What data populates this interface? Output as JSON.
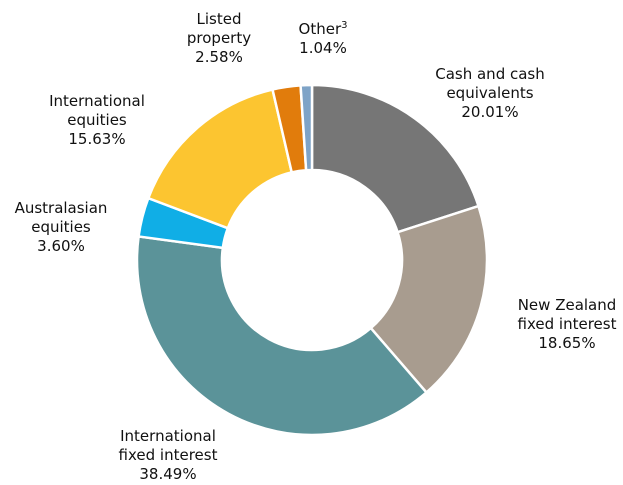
{
  "chart_data": {
    "type": "pie",
    "variant": "donut",
    "start_angle_deg": 0,
    "direction": "clockwise",
    "slices": [
      {
        "name": "Cash and cash equivalents",
        "value": 20.01,
        "display": "20.01%",
        "color": "#767676",
        "label_lines": [
          "Cash and cash",
          "equivalents"
        ]
      },
      {
        "name": "New Zealand fixed interest",
        "value": 18.65,
        "display": "18.65%",
        "color": "#a89c8f",
        "label_lines": [
          "New Zealand",
          "fixed interest"
        ]
      },
      {
        "name": "International fixed interest",
        "value": 38.49,
        "display": "38.49%",
        "color": "#5b9399",
        "label_lines": [
          "International",
          "fixed interest"
        ]
      },
      {
        "name": "Australasian equities",
        "value": 3.6,
        "display": "3.60%",
        "color": "#10aee6",
        "label_lines": [
          "Australasian",
          "equities"
        ]
      },
      {
        "name": "International equities",
        "value": 15.63,
        "display": "15.63%",
        "color": "#fcc530",
        "label_lines": [
          "International",
          "equities"
        ]
      },
      {
        "name": "Listed property",
        "value": 2.58,
        "display": "2.58%",
        "color": "#e17c0c",
        "label_lines": [
          "Listed",
          "property"
        ]
      },
      {
        "name": "Other",
        "value": 1.04,
        "display": "1.04%",
        "color": "#7ea3c7",
        "label_lines": [
          "Other"
        ],
        "superscript": "3"
      }
    ]
  }
}
